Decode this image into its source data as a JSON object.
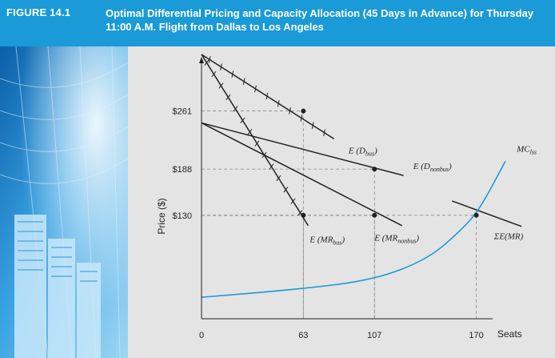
{
  "figure": {
    "number": "FIGURE 14.1",
    "title": "Optimal Differential Pricing and Capacity Allocation (45 Days in Advance) for Thursday 11:00 A.M. Flight from Dallas to Los Angeles"
  },
  "colors": {
    "header": "#1a9ad6",
    "plot_background": "#e4e4e4",
    "mc_curve": "#1a9ad6",
    "lines": "#222222"
  },
  "chart_data": {
    "type": "line",
    "xlabel": "Seats",
    "ylabel": "Price ($)",
    "xlim": [
      0,
      190
    ],
    "ylim": [
      0,
      330
    ],
    "x_ticks": [
      {
        "value": 0,
        "label": "0"
      },
      {
        "value": 63,
        "label": "63"
      },
      {
        "value": 107,
        "label": "107"
      },
      {
        "value": 170,
        "label": "170"
      }
    ],
    "y_ticks": [
      {
        "value": 261,
        "label": "$261"
      },
      {
        "value": 188,
        "label": "$188"
      },
      {
        "value": 130,
        "label": "$130"
      }
    ],
    "series": [
      {
        "name": "E (Dbus)",
        "label_main": "E (D",
        "label_sub": "bus",
        "label_end": ")",
        "style": "crossed",
        "points": [
          [
            0,
            332
          ],
          [
            82,
            226
          ]
        ],
        "label_at": [
          91,
          208
        ]
      },
      {
        "name": "E (MRbus)",
        "label_main": "E (MR",
        "label_sub": "bus",
        "label_end": ")",
        "style": "crossed",
        "points": [
          [
            0,
            332
          ],
          [
            66,
            117
          ]
        ],
        "label_at": [
          67,
          96
        ]
      },
      {
        "name": "E (Dnonbus)",
        "label_main": "E (D",
        "label_sub": "nonbus",
        "label_end": ")",
        "style": "solid",
        "points": [
          [
            0,
            246
          ],
          [
            125,
            180
          ]
        ],
        "label_at": [
          131,
          188
        ]
      },
      {
        "name": "E (MRnonbus)",
        "label_main": "E (MR",
        "label_sub": "nonbus",
        "label_end": ")",
        "style": "solid",
        "points": [
          [
            0,
            246
          ],
          [
            124,
            117
          ]
        ],
        "label_at": [
          107,
          98
        ]
      },
      {
        "name": "ΣE(MR)",
        "label_main": "ΣE(MR)",
        "label_sub": "",
        "label_end": "",
        "style": "solid",
        "points": [
          [
            155,
            148
          ],
          [
            198,
            116
          ]
        ],
        "label_at": [
          181,
          100
        ]
      },
      {
        "name": "MClss",
        "label_main": "MC",
        "label_sub": "lss",
        "label_end": "",
        "style": "curve",
        "points": [
          [
            0,
            27
          ],
          [
            60,
            37
          ],
          [
            107,
            49
          ],
          [
            140,
            75
          ],
          [
            160,
            110
          ],
          [
            172,
            137
          ],
          [
            188,
            198
          ]
        ],
        "label_at": [
          195,
          210
        ]
      }
    ],
    "equilibria": [
      {
        "x": 63,
        "y": 261
      },
      {
        "x": 107,
        "y": 188
      },
      {
        "x": 63,
        "y": 130
      },
      {
        "x": 107,
        "y": 130
      },
      {
        "x": 170,
        "y": 130
      }
    ]
  }
}
